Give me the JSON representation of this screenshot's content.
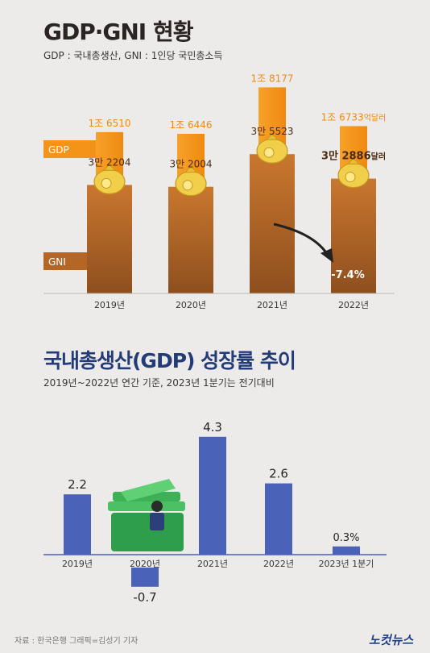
{
  "header": {
    "title": "GDP·GNI 현황",
    "subtitle": "GDP : 국내총생산, GNI : 1인당 국민총소득"
  },
  "chart_data": [
    {
      "type": "bar",
      "title": "GDP·GNI 현황",
      "categories": [
        "2019년",
        "2020년",
        "2021년",
        "2022년"
      ],
      "series": [
        {
          "name": "GDP",
          "values": [
            16510,
            16446,
            18177,
            16733
          ],
          "labels": [
            "1조 6510",
            "1조 6446",
            "1조 8177",
            "1조 6733"
          ],
          "unit": "억달러",
          "color": "#f39419"
        },
        {
          "name": "GNI",
          "values": [
            32204,
            32004,
            35523,
            32886
          ],
          "labels": [
            "3만 2204",
            "3만 2004",
            "3만 5523",
            "3만 2886"
          ],
          "unit": "달러",
          "color": "#b36626"
        }
      ],
      "annotation": "-7.4%"
    },
    {
      "type": "bar",
      "title": "국내총생산(GDP) 성장률 추이",
      "subtitle": "2019년~2022년 연간 기준, 2023년 1분기는 전기대비",
      "categories": [
        "2019년",
        "2020년",
        "2021년",
        "2022년",
        "2023년 1분기"
      ],
      "values": [
        2.2,
        -0.7,
        4.3,
        2.6,
        0.3
      ],
      "labels": [
        "2.2",
        "-0.7",
        "4.3",
        "2.6",
        "0.3%"
      ],
      "color": "#4a63b8"
    }
  ],
  "footer": {
    "source": "자료 : 한국은행    그래픽=김성기 기자",
    "logo": "노컷뉴스"
  }
}
